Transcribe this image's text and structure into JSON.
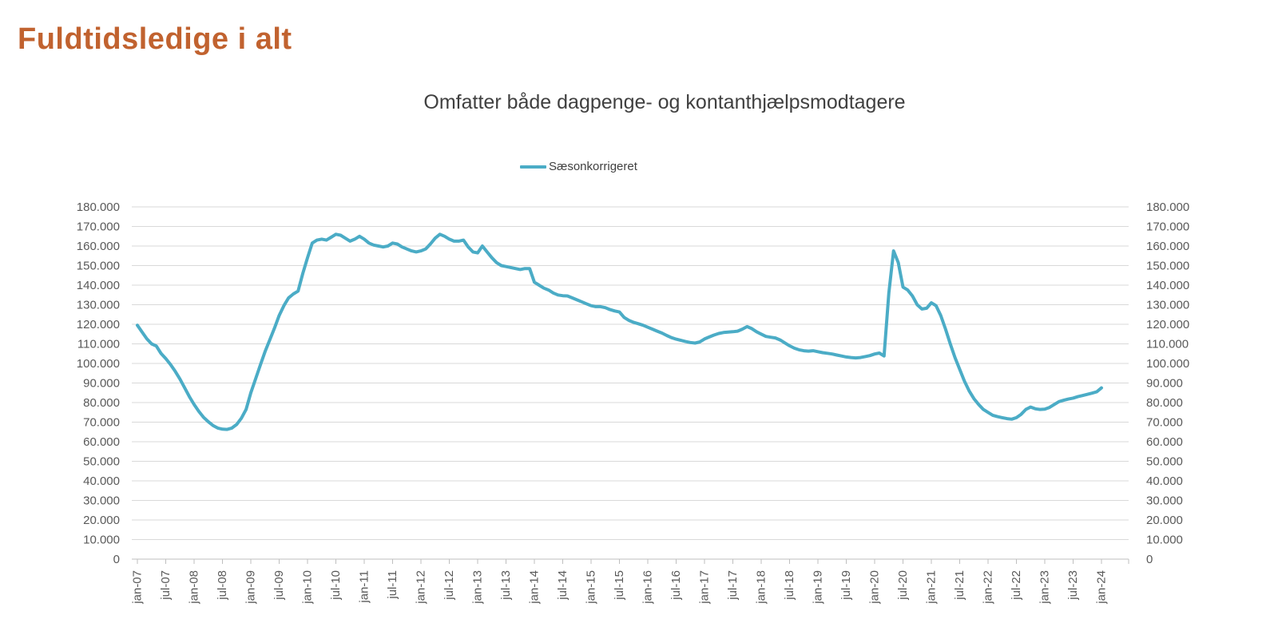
{
  "header": {
    "title": "Fuldtidsledige i alt"
  },
  "colors": {
    "title": "#C1622F",
    "subtitle_text": "#404040",
    "axis_text": "#595959",
    "gridline": "#D9D9D9",
    "axis_line": "#BFBFBF",
    "series_line": "#4BACC6"
  },
  "chart_data": {
    "type": "line",
    "title": "Omfatter både dagpenge- og kontanthjælpsmodtagere",
    "legend_position": "top-center",
    "grid": "horizontal",
    "x_frequency": "monthly",
    "x_start": "jan-07",
    "x_end": "jan-24",
    "ylim": [
      0,
      180000
    ],
    "y_tick_step": 10000,
    "axes": {
      "left_labels": true,
      "right_labels": true,
      "bottom_axis_line": true
    },
    "y_tick_labels_top_to_bottom": [
      "180.000",
      "170.000",
      "160.000",
      "150.000",
      "140.000",
      "130.000",
      "120.000",
      "110.000",
      "100.000",
      "90.000",
      "80.000",
      "70.000",
      "60.000",
      "50.000",
      "40.000",
      "30.000",
      "20.000",
      "10.000",
      "0"
    ],
    "x_tick_labels": [
      "jan-07",
      "jul-07",
      "jan-08",
      "jul-08",
      "jan-09",
      "jul-09",
      "jan-10",
      "jul-10",
      "jan-11",
      "jul-11",
      "jan-12",
      "jul-12",
      "jan-13",
      "jul-13",
      "jan-14",
      "jul-14",
      "jan-15",
      "jul-15",
      "jan-16",
      "jul-16",
      "jan-17",
      "jul-17",
      "jan-18",
      "jul-18",
      "jan-19",
      "jul-19",
      "jan-20",
      "jul-20",
      "jan-21",
      "jul-21",
      "jan-22",
      "jul-22",
      "jan-23",
      "jul-23",
      "jan-24"
    ],
    "series": [
      {
        "name": "Sæsonkorrigeret",
        "color": "#4BACC6",
        "values": [
          119500,
          116000,
          112600,
          110000,
          108900,
          105100,
          102500,
          99500,
          96000,
          92000,
          87500,
          83000,
          79000,
          75500,
          72500,
          70200,
          68300,
          67000,
          66400,
          66300,
          67000,
          68800,
          72000,
          76500,
          85000,
          92000,
          99000,
          106000,
          112000,
          118000,
          124500,
          129500,
          133500,
          135500,
          137000,
          146000,
          154000,
          161500,
          163000,
          163500,
          163000,
          164500,
          166000,
          165500,
          164000,
          162500,
          163500,
          165000,
          163500,
          161500,
          160500,
          160000,
          159500,
          160000,
          161500,
          161000,
          159500,
          158500,
          157500,
          157000,
          157500,
          158500,
          161000,
          164000,
          166000,
          165000,
          163500,
          162500,
          162500,
          163000,
          159500,
          157000,
          156500,
          160000,
          157000,
          154000,
          151500,
          150000,
          149500,
          149000,
          148500,
          148000,
          148500,
          148500,
          141500,
          140000,
          138500,
          137500,
          136000,
          135000,
          134600,
          134500,
          133500,
          132500,
          131500,
          130500,
          129500,
          129000,
          129000,
          128500,
          127500,
          126800,
          126300,
          123500,
          122000,
          121000,
          120300,
          119500,
          118500,
          117500,
          116500,
          115500,
          114300,
          113200,
          112400,
          111800,
          111200,
          110700,
          110400,
          111000,
          112500,
          113500,
          114500,
          115300,
          115800,
          116000,
          116200,
          116500,
          117500,
          118800,
          117800,
          116200,
          115000,
          113800,
          113400,
          113000,
          112000,
          110500,
          109000,
          107800,
          107000,
          106500,
          106300,
          106500,
          106000,
          105500,
          105200,
          104800,
          104300,
          103800,
          103300,
          103000,
          102800,
          103000,
          103500,
          104000,
          104800,
          105300,
          103800,
          136000,
          157500,
          151500,
          139000,
          137500,
          134500,
          130000,
          127800,
          128200,
          131000,
          129500,
          124500,
          117500,
          110000,
          103000,
          97000,
          91000,
          86000,
          82000,
          79000,
          76500,
          75000,
          73500,
          72800,
          72300,
          71800,
          71500,
          72300,
          74000,
          76500,
          77700,
          76800,
          76500,
          76600,
          77500,
          79000,
          80500,
          81200,
          81800,
          82300,
          83000,
          83600,
          84200,
          84800,
          85500,
          87500
        ]
      }
    ]
  }
}
